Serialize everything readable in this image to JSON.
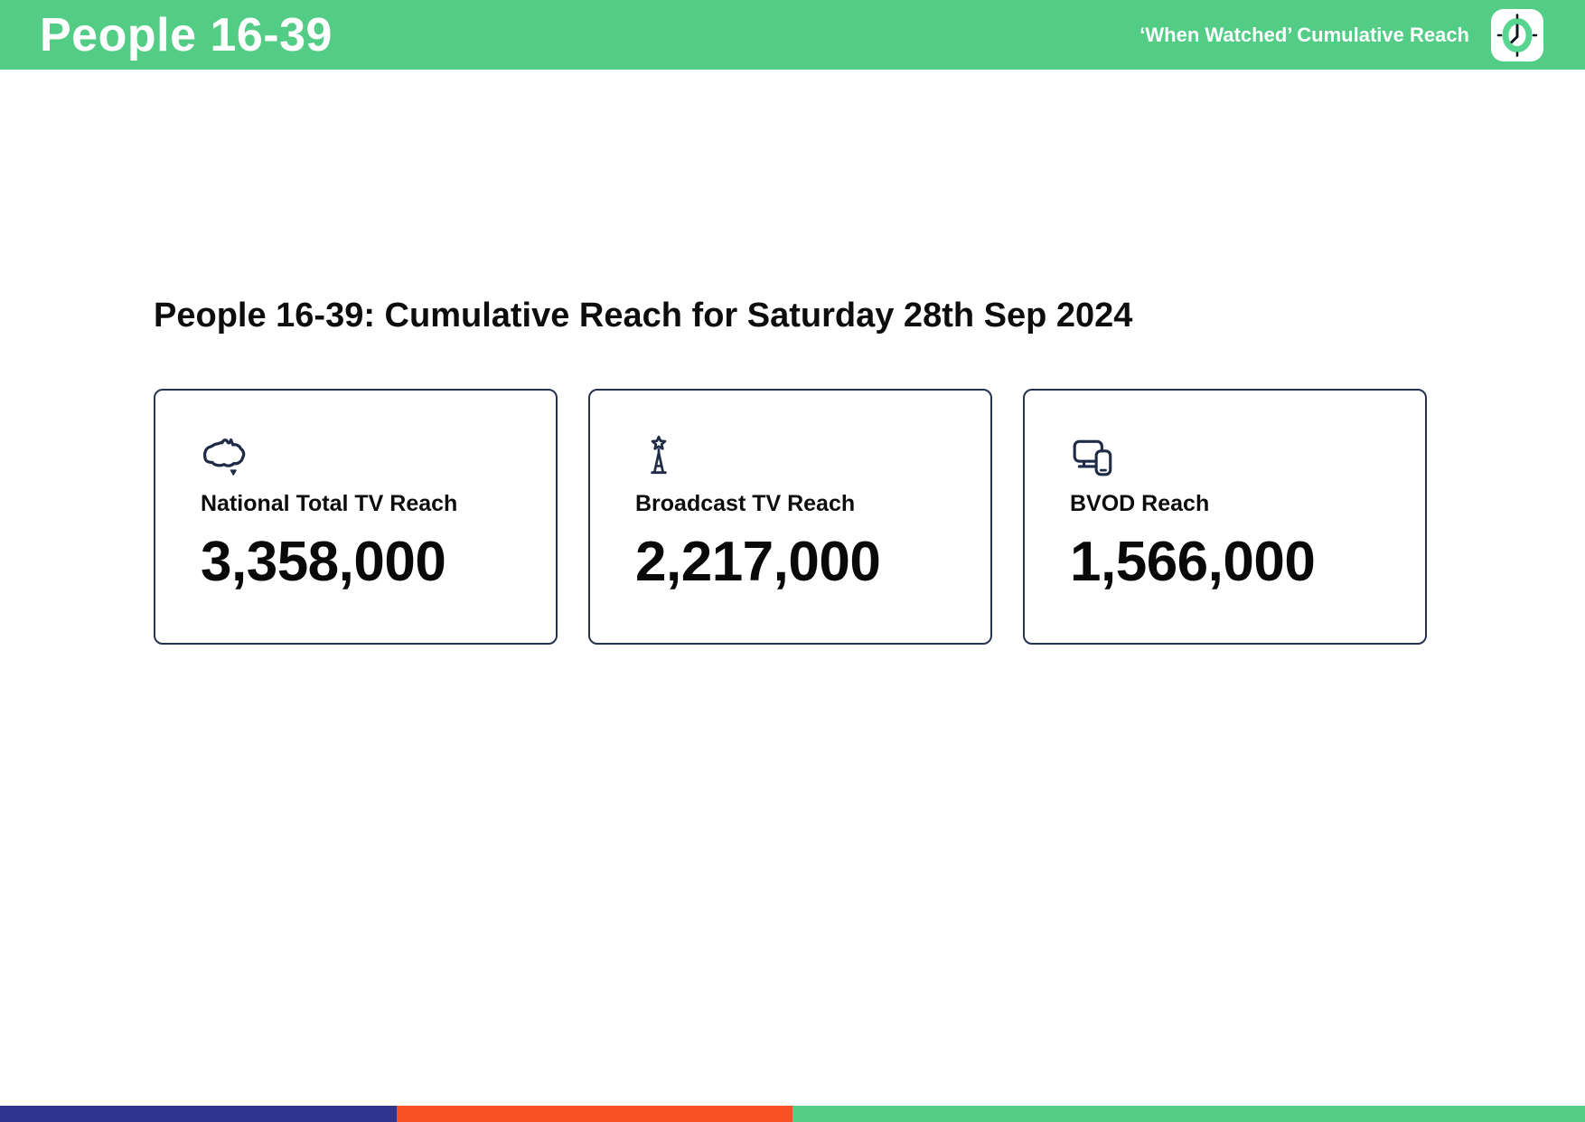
{
  "header": {
    "title": "People 16-39",
    "subtitle": "‘When Watched’ Cumulative Reach",
    "clock_icon": "clock-icon",
    "bg_color": "#53cd86"
  },
  "main": {
    "heading": "People 16-39: Cumulative Reach for Saturday 28th Sep 2024",
    "cards": [
      {
        "icon": "australia-map-icon",
        "label": "National Total TV Reach",
        "value": "3,358,000"
      },
      {
        "icon": "broadcast-tower-icon",
        "label": "Broadcast TV Reach",
        "value": "2,217,000"
      },
      {
        "icon": "devices-icon",
        "label": "BVOD Reach",
        "value": "1,566,000"
      }
    ]
  },
  "footer": {
    "segments": [
      {
        "color": "#2d3591",
        "width_pct": 25
      },
      {
        "color": "#f95125",
        "width_pct": 25
      },
      {
        "color": "#53cd86",
        "width_pct": 50
      }
    ]
  },
  "colors": {
    "header_green": "#53cd86",
    "card_border_navy": "#253350",
    "icon_navy": "#1f2b47",
    "clock_ring_green": "#58d590"
  }
}
